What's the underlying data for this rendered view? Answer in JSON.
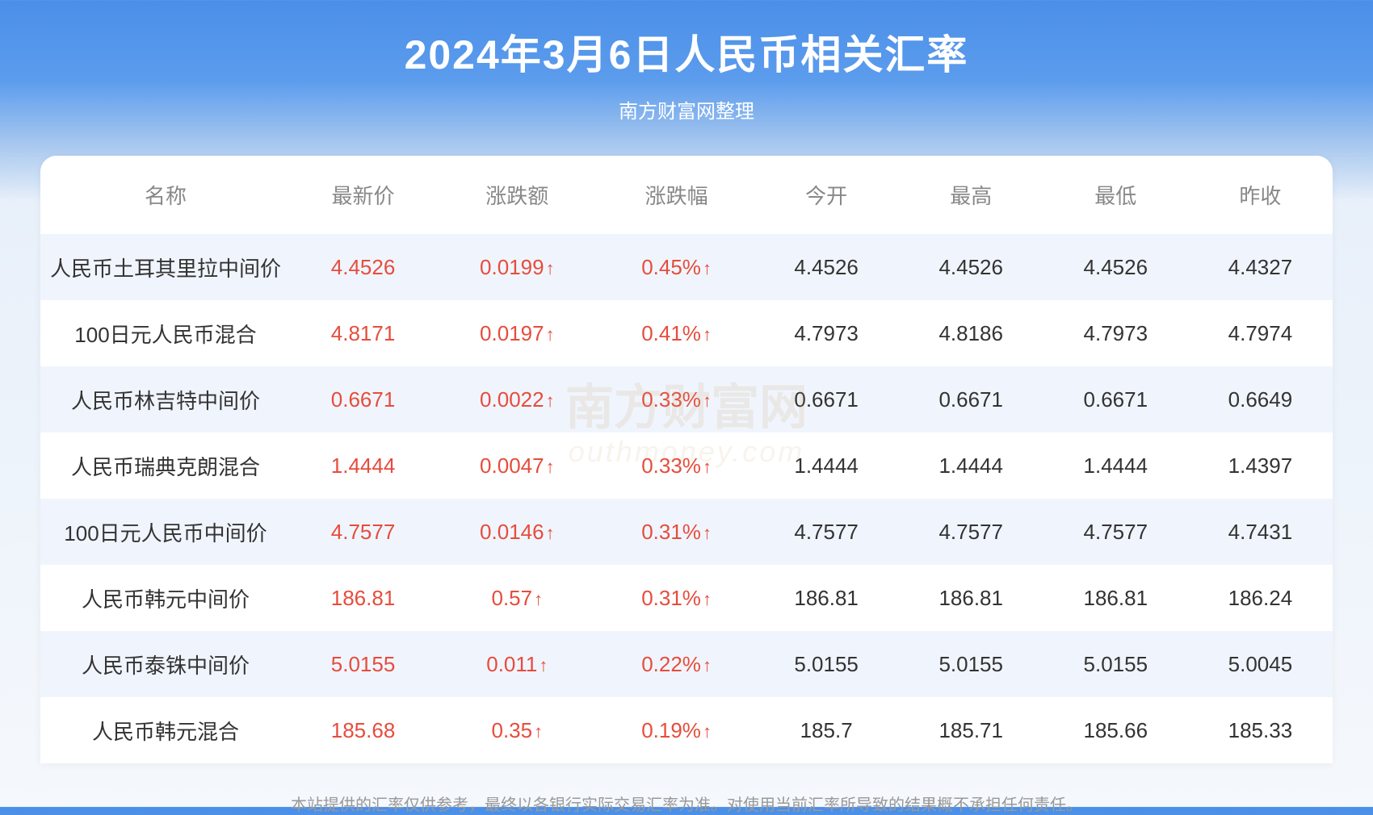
{
  "header": {
    "title": "2024年3月6日人民币相关汇率",
    "subtitle": "南方财富网整理"
  },
  "table": {
    "columns": [
      "名称",
      "最新价",
      "涨跌额",
      "涨跌幅",
      "今开",
      "最高",
      "最低",
      "昨收"
    ],
    "rows": [
      {
        "name": "人民币土耳其里拉中间价",
        "latest": "4.4526",
        "change": "0.0199",
        "change_pct": "0.45%",
        "open": "4.4526",
        "high": "4.4526",
        "low": "4.4526",
        "prev_close": "4.4327",
        "direction": "up"
      },
      {
        "name": "100日元人民币混合",
        "latest": "4.8171",
        "change": "0.0197",
        "change_pct": "0.41%",
        "open": "4.7973",
        "high": "4.8186",
        "low": "4.7973",
        "prev_close": "4.7974",
        "direction": "up"
      },
      {
        "name": "人民币林吉特中间价",
        "latest": "0.6671",
        "change": "0.0022",
        "change_pct": "0.33%",
        "open": "0.6671",
        "high": "0.6671",
        "low": "0.6671",
        "prev_close": "0.6649",
        "direction": "up"
      },
      {
        "name": "人民币瑞典克朗混合",
        "latest": "1.4444",
        "change": "0.0047",
        "change_pct": "0.33%",
        "open": "1.4444",
        "high": "1.4444",
        "low": "1.4444",
        "prev_close": "1.4397",
        "direction": "up"
      },
      {
        "name": "100日元人民币中间价",
        "latest": "4.7577",
        "change": "0.0146",
        "change_pct": "0.31%",
        "open": "4.7577",
        "high": "4.7577",
        "low": "4.7577",
        "prev_close": "4.7431",
        "direction": "up"
      },
      {
        "name": "人民币韩元中间价",
        "latest": "186.81",
        "change": "0.57",
        "change_pct": "0.31%",
        "open": "186.81",
        "high": "186.81",
        "low": "186.81",
        "prev_close": "186.24",
        "direction": "up"
      },
      {
        "name": "人民币泰铢中间价",
        "latest": "5.0155",
        "change": "0.011",
        "change_pct": "0.22%",
        "open": "5.0155",
        "high": "5.0155",
        "low": "5.0155",
        "prev_close": "5.0045",
        "direction": "up"
      },
      {
        "name": "人民币韩元混合",
        "latest": "185.68",
        "change": "0.35",
        "change_pct": "0.19%",
        "open": "185.7",
        "high": "185.71",
        "low": "185.66",
        "prev_close": "185.33",
        "direction": "up"
      }
    ]
  },
  "watermark": {
    "main": "南方财富网",
    "sub": "outhmoney.com"
  },
  "disclaimer": "本站提供的汇率仅供参考，最终以各银行实际交易汇率为准。对使用当前汇率所导致的结果概不承担任何责任。",
  "colors": {
    "up_color": "#e74c3c",
    "header_bg_start": "#4a8fe8",
    "header_bg_end": "#f5f8fc",
    "row_odd_bg": "#f0f5fd",
    "row_even_bg": "#ffffff",
    "text_header": "#888888",
    "text_body": "#333333",
    "text_disclaimer": "#999999"
  },
  "arrow_up": "↑"
}
